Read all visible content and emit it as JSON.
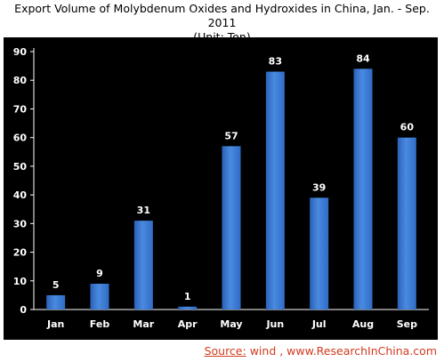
{
  "chart_data": {
    "type": "bar",
    "title": "Export Volume of Molybdenum Oxides and Hydroxides in China, Jan. - Sep. 2011",
    "subtitle": "(Unit: Ton)",
    "xlabel": "",
    "ylabel": "",
    "categories": [
      "Jan",
      "Feb",
      "Mar",
      "Apr",
      "May",
      "Jun",
      "Jul",
      "Aug",
      "Sep"
    ],
    "values": [
      5,
      9,
      31,
      1,
      57,
      83,
      39,
      84,
      60
    ],
    "ylim": [
      0,
      90
    ],
    "yticks": [
      0,
      10,
      20,
      30,
      40,
      50,
      60,
      70,
      80,
      90
    ],
    "grid": false,
    "legend": "none",
    "colors": {
      "background": "#000000",
      "bar": "#3f7fd6",
      "text": "#ffffff"
    }
  },
  "source": {
    "label": "Source:",
    "text": "wind , www.ResearchInChina.com"
  }
}
